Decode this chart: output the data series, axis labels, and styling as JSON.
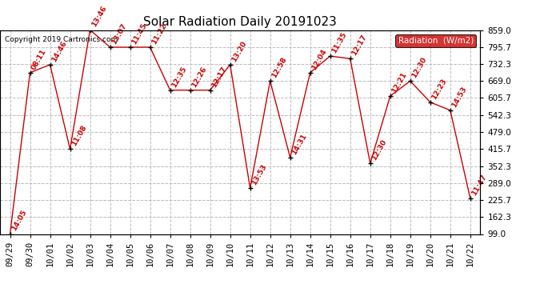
{
  "title": "Solar Radiation Daily 20191023",
  "copyright": "Copyright 2019 Cartronics.com",
  "legend_label": "Radiation  (W/m2)",
  "x_labels": [
    "09/29",
    "09/30",
    "10/01",
    "10/02",
    "10/03",
    "10/04",
    "10/05",
    "10/06",
    "10/07",
    "10/08",
    "10/09",
    "10/10",
    "10/11",
    "10/12",
    "10/13",
    "10/14",
    "10/15",
    "10/16",
    "10/17",
    "10/18",
    "10/19",
    "10/20",
    "10/21",
    "10/22"
  ],
  "y_values": [
    99.0,
    700.0,
    730.0,
    415.0,
    859.0,
    795.0,
    795.0,
    795.0,
    635.0,
    635.0,
    635.0,
    730.0,
    270.0,
    669.0,
    384.0,
    700.0,
    762.0,
    752.0,
    362.0,
    613.0,
    669.0,
    590.0,
    560.0,
    232.0
  ],
  "point_labels": [
    "14:05",
    "08:11",
    "14:46",
    "11:08",
    "13:46",
    "13:07",
    "11:45",
    "11:22",
    "12:35",
    "12:26",
    "12:17",
    "13:20",
    "13:53",
    "12:58",
    "14:31",
    "12:04",
    "11:35",
    "12:17",
    "12:30",
    "12:21",
    "12:30",
    "12:23",
    "14:53",
    "11:47"
  ],
  "y_ticks": [
    99.0,
    162.3,
    225.7,
    289.0,
    352.3,
    415.7,
    479.0,
    542.3,
    605.7,
    669.0,
    732.3,
    795.7,
    859.0
  ],
  "line_color": "#cc0000",
  "marker_color": "#000000",
  "label_color": "#cc0000",
  "legend_bg": "#cc0000",
  "legend_text_color": "#ffffff",
  "background_color": "#ffffff",
  "grid_color": "#bbbbbb",
  "title_fontsize": 11,
  "copyright_fontsize": 6.5,
  "label_fontsize": 6.5,
  "tick_fontsize": 7.5
}
